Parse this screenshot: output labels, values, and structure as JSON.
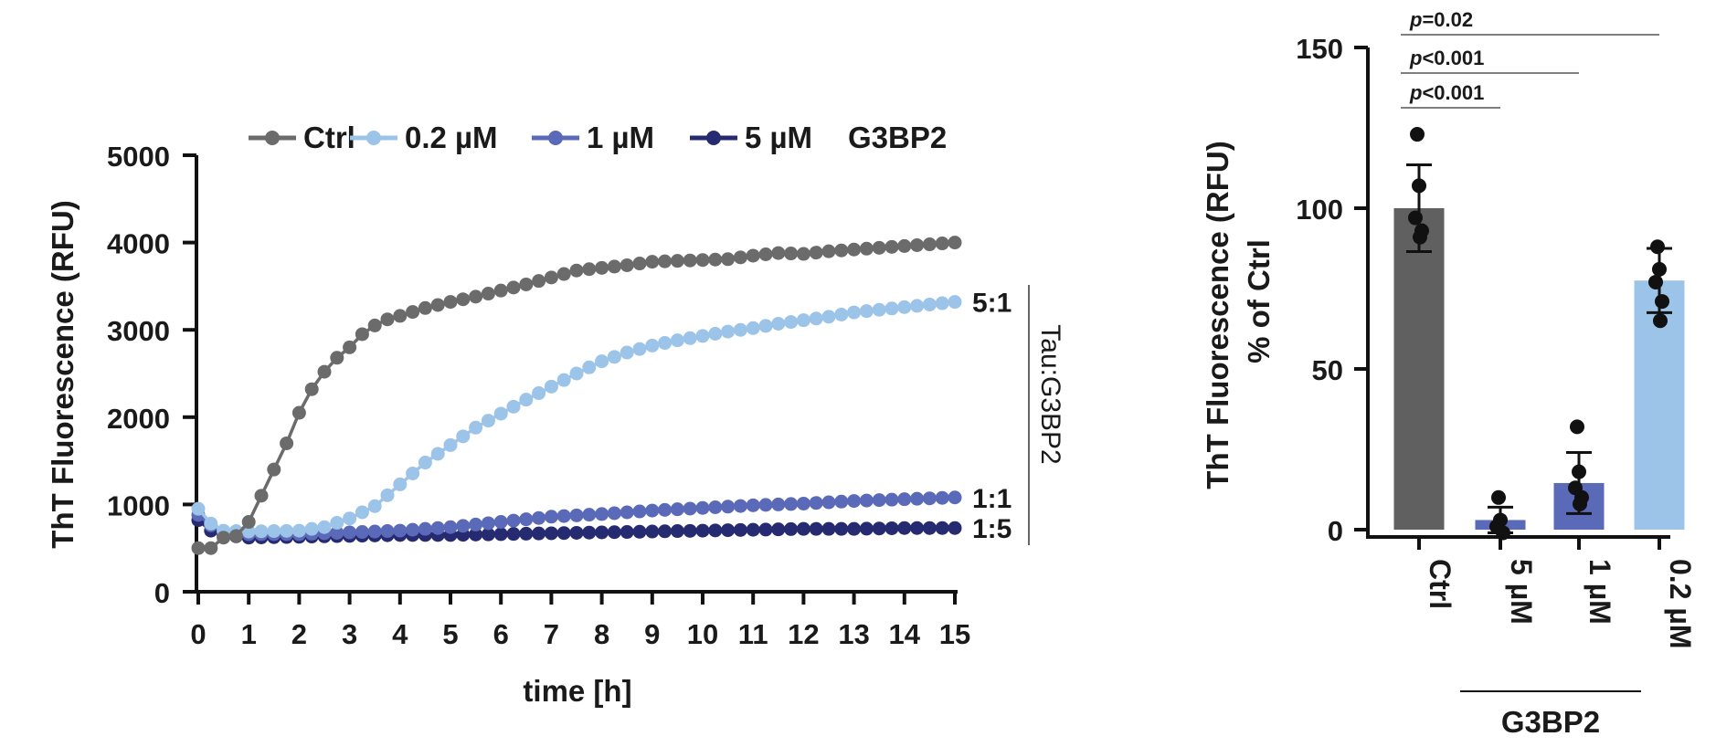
{
  "chart_data": [
    {
      "type": "line",
      "legend_title": "G3BP2",
      "xlabel": "time [h]",
      "ylabel": "ThT Fluorescence (RFU)",
      "xlim": [
        0,
        15
      ],
      "ylim": [
        0,
        5000
      ],
      "x_ticks": [
        "0",
        "1",
        "2",
        "3",
        "4",
        "5",
        "6",
        "7",
        "8",
        "9",
        "10",
        "11",
        "12",
        "13",
        "14",
        "15"
      ],
      "y_ticks": [
        "0",
        "1000",
        "2000",
        "3000",
        "4000",
        "5000"
      ],
      "legend_position": "top",
      "bracket_label": "Tau:G3BP2",
      "series": [
        {
          "name": "Ctrl",
          "color": "#6b6b6b",
          "end_label": "",
          "keypoints": [
            [
              0,
              500
            ],
            [
              0.25,
              500
            ],
            [
              0.5,
              620
            ],
            [
              0.75,
              640
            ],
            [
              1,
              800
            ],
            [
              1.25,
              1100
            ],
            [
              1.5,
              1400
            ],
            [
              1.75,
              1700
            ],
            [
              2,
              2050
            ],
            [
              2.25,
              2320
            ],
            [
              2.5,
              2520
            ],
            [
              2.75,
              2680
            ],
            [
              3,
              2800
            ],
            [
              3.25,
              2950
            ],
            [
              3.5,
              3050
            ],
            [
              3.75,
              3120
            ],
            [
              4,
              3160
            ],
            [
              4.5,
              3250
            ],
            [
              5,
              3320
            ],
            [
              5.5,
              3380
            ],
            [
              6,
              3450
            ],
            [
              6.5,
              3520
            ],
            [
              7,
              3600
            ],
            [
              7.5,
              3680
            ],
            [
              8,
              3710
            ],
            [
              8.5,
              3740
            ],
            [
              9,
              3780
            ],
            [
              10,
              3800
            ],
            [
              10.5,
              3810
            ],
            [
              11,
              3850
            ],
            [
              11.5,
              3880
            ],
            [
              12,
              3870
            ],
            [
              12.5,
              3900
            ],
            [
              13,
              3920
            ],
            [
              14,
              3960
            ],
            [
              15,
              4000
            ]
          ]
        },
        {
          "name": "0.2 µM",
          "color": "#9cc3e8",
          "end_label": "5:1",
          "keypoints": [
            [
              0,
              950
            ],
            [
              0.25,
              780
            ],
            [
              0.5,
              700
            ],
            [
              1,
              690
            ],
            [
              2,
              700
            ],
            [
              2.5,
              740
            ],
            [
              3,
              840
            ],
            [
              3.5,
              980
            ],
            [
              4,
              1230
            ],
            [
              4.5,
              1480
            ],
            [
              5,
              1680
            ],
            [
              5.5,
              1880
            ],
            [
              6,
              2040
            ],
            [
              6.5,
              2200
            ],
            [
              7,
              2350
            ],
            [
              7.5,
              2500
            ],
            [
              8,
              2640
            ],
            [
              8.5,
              2740
            ],
            [
              9,
              2820
            ],
            [
              9.5,
              2880
            ],
            [
              10,
              2930
            ],
            [
              10.5,
              2980
            ],
            [
              11,
              3020
            ],
            [
              11.5,
              3070
            ],
            [
              12,
              3110
            ],
            [
              12.5,
              3150
            ],
            [
              13,
              3200
            ],
            [
              13.5,
              3230
            ],
            [
              14,
              3260
            ],
            [
              14.5,
              3290
            ],
            [
              15,
              3320
            ]
          ]
        },
        {
          "name": "1 µM",
          "color": "#5a6ab8",
          "end_label": "1:1",
          "keypoints": [
            [
              0,
              880
            ],
            [
              0.25,
              760
            ],
            [
              0.5,
              680
            ],
            [
              1,
              660
            ],
            [
              2,
              660
            ],
            [
              3,
              680
            ],
            [
              4,
              700
            ],
            [
              5,
              740
            ],
            [
              6,
              800
            ],
            [
              7,
              860
            ],
            [
              8,
              890
            ],
            [
              9,
              930
            ],
            [
              10,
              960
            ],
            [
              11,
              990
            ],
            [
              12,
              1010
            ],
            [
              13,
              1040
            ],
            [
              14,
              1060
            ],
            [
              15,
              1080
            ]
          ]
        },
        {
          "name": "5 µM",
          "color": "#262a70",
          "end_label": "1:5",
          "keypoints": [
            [
              0,
              820
            ],
            [
              0.25,
              700
            ],
            [
              0.5,
              650
            ],
            [
              1,
              620
            ],
            [
              2,
              630
            ],
            [
              3,
              640
            ],
            [
              4,
              650
            ],
            [
              5,
              650
            ],
            [
              6,
              660
            ],
            [
              7,
              670
            ],
            [
              8,
              680
            ],
            [
              9,
              690
            ],
            [
              10,
              700
            ],
            [
              11,
              710
            ],
            [
              12,
              720
            ],
            [
              13,
              720
            ],
            [
              14,
              730
            ],
            [
              15,
              730
            ]
          ]
        }
      ]
    },
    {
      "type": "bar",
      "ylabel_lines": [
        "ThT Fluorescence (RFU)",
        "% of Ctrl"
      ],
      "ylim": [
        0,
        150
      ],
      "y_ticks": [
        "0",
        "50",
        "100",
        "150"
      ],
      "categories": [
        "Ctrl",
        "5 µM",
        "1 µM",
        "0.2 µM"
      ],
      "group_label": "G3BP2",
      "values": [
        100,
        3,
        14.5,
        77.5
      ],
      "errors": [
        13.5,
        4,
        9.5,
        10
      ],
      "colors": [
        "#606060",
        "#5a6ab8",
        "#5a6ab8",
        "#9cc3e8"
      ],
      "points": [
        [
          123,
          107,
          97,
          93,
          91
        ],
        [
          10,
          3,
          1,
          -1
        ],
        [
          32,
          18,
          13,
          10,
          8
        ],
        [
          88,
          81,
          77,
          71,
          65
        ]
      ],
      "significance": [
        {
          "from": "Ctrl",
          "to": "5 µM",
          "label": "p<0.001"
        },
        {
          "from": "Ctrl",
          "to": "1 µM",
          "label": "p<0.001"
        },
        {
          "from": "Ctrl",
          "to": "0.2 µM",
          "label": "p=0.02"
        }
      ]
    }
  ]
}
